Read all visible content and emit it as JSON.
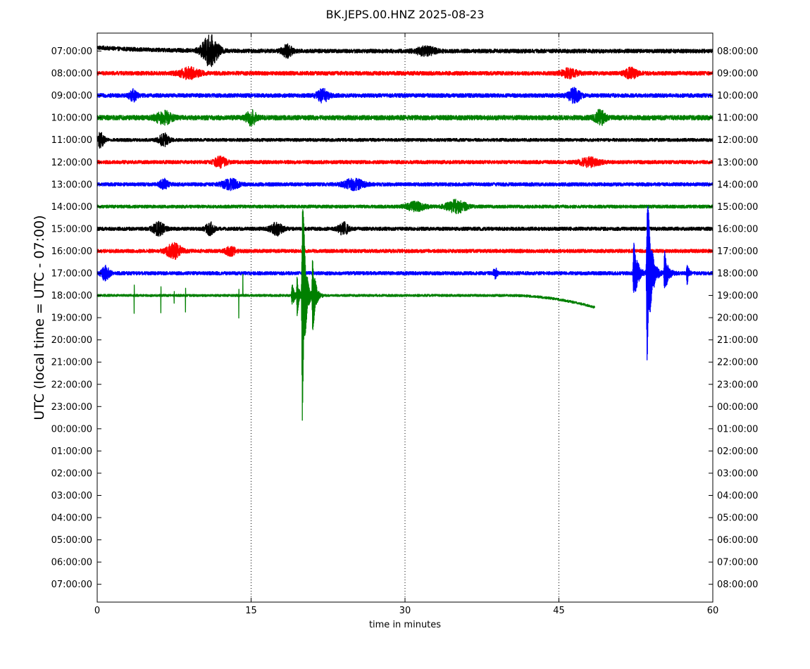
{
  "chart_data": {
    "type": "line",
    "title": "BK.JEPS.00.HNZ 2025-08-23",
    "xlabel": "time in minutes",
    "ylabel": "UTC (local time = UTC - 07:00)",
    "xlim": [
      0,
      60
    ],
    "xticks": [
      0,
      15,
      30,
      45,
      60
    ],
    "x_grid": "dotted vertical lines at 15, 30, 45",
    "left_tick_labels": [
      "07:00:00",
      "08:00:00",
      "09:00:00",
      "10:00:00",
      "11:00:00",
      "12:00:00",
      "13:00:00",
      "14:00:00",
      "15:00:00",
      "16:00:00",
      "17:00:00",
      "18:00:00",
      "19:00:00",
      "20:00:00",
      "21:00:00",
      "22:00:00",
      "23:00:00",
      "00:00:00",
      "01:00:00",
      "02:00:00",
      "03:00:00",
      "04:00:00",
      "05:00:00",
      "06:00:00",
      "07:00:00"
    ],
    "right_tick_labels": [
      "08:00:00",
      "09:00:00",
      "10:00:00",
      "11:00:00",
      "12:00:00",
      "13:00:00",
      "14:00:00",
      "15:00:00",
      "16:00:00",
      "17:00:00",
      "18:00:00",
      "19:00:00",
      "20:00:00",
      "21:00:00",
      "22:00:00",
      "23:00:00",
      "00:00:00",
      "01:00:00",
      "02:00:00",
      "03:00:00",
      "04:00:00",
      "05:00:00",
      "06:00:00",
      "07:00:00",
      "08:00:00"
    ],
    "trace_colors": [
      "#000000",
      "#ff0000",
      "#0000ff",
      "#008000"
    ],
    "traces": [
      {
        "row": 0,
        "color": "#000000",
        "start_min": 0,
        "end_min": 60,
        "noise": 0.1,
        "bursts": [
          [
            11.0,
            0.75,
            0.8
          ],
          [
            18.5,
            0.3,
            0.5
          ],
          [
            32.0,
            0.2,
            1.0
          ]
        ],
        "initial_offset": 0.18,
        "offset_decay_min": 5
      },
      {
        "row": 1,
        "color": "#ff0000",
        "start_min": 0,
        "end_min": 60,
        "noise": 0.1,
        "bursts": [
          [
            9.0,
            0.25,
            1.0
          ],
          [
            52.0,
            0.25,
            0.6
          ],
          [
            46.0,
            0.2,
            0.8
          ]
        ]
      },
      {
        "row": 2,
        "color": "#0000ff",
        "start_min": 0,
        "end_min": 60,
        "noise": 0.1,
        "bursts": [
          [
            22.0,
            0.3,
            0.6
          ],
          [
            46.5,
            0.35,
            0.6
          ],
          [
            3.5,
            0.25,
            0.4
          ]
        ]
      },
      {
        "row": 3,
        "color": "#008000",
        "start_min": 0,
        "end_min": 60,
        "noise": 0.12,
        "bursts": [
          [
            6.5,
            0.3,
            0.8
          ],
          [
            15.0,
            0.35,
            0.5
          ],
          [
            49.0,
            0.35,
            0.5
          ]
        ]
      },
      {
        "row": 4,
        "color": "#000000",
        "start_min": 0,
        "end_min": 60,
        "noise": 0.08,
        "bursts": [
          [
            0.3,
            0.35,
            0.4
          ],
          [
            6.5,
            0.3,
            0.5
          ]
        ]
      },
      {
        "row": 5,
        "color": "#ff0000",
        "start_min": 0,
        "end_min": 60,
        "noise": 0.09,
        "bursts": [
          [
            12.0,
            0.25,
            0.6
          ],
          [
            48.0,
            0.2,
            1.0
          ]
        ]
      },
      {
        "row": 6,
        "color": "#0000ff",
        "start_min": 0,
        "end_min": 60,
        "noise": 0.09,
        "bursts": [
          [
            6.5,
            0.25,
            0.4
          ],
          [
            13.0,
            0.25,
            0.8
          ],
          [
            25.0,
            0.25,
            1.0
          ]
        ]
      },
      {
        "row": 7,
        "color": "#008000",
        "start_min": 0,
        "end_min": 60,
        "noise": 0.08,
        "bursts": [
          [
            35.0,
            0.3,
            1.0
          ],
          [
            31.0,
            0.2,
            1.0
          ]
        ]
      },
      {
        "row": 8,
        "color": "#000000",
        "start_min": 0,
        "end_min": 60,
        "noise": 0.09,
        "bursts": [
          [
            6.0,
            0.3,
            0.6
          ],
          [
            11.0,
            0.3,
            0.4
          ],
          [
            17.5,
            0.3,
            0.6
          ],
          [
            24.0,
            0.3,
            0.5
          ]
        ]
      },
      {
        "row": 9,
        "color": "#ff0000",
        "start_min": 0,
        "end_min": 60,
        "noise": 0.09,
        "bursts": [
          [
            7.5,
            0.35,
            0.8
          ],
          [
            13.0,
            0.2,
            0.5
          ]
        ]
      },
      {
        "row": 10,
        "color": "#0000ff",
        "start_min": 0,
        "end_min": 60,
        "noise": 0.09,
        "bursts": [
          [
            0.8,
            0.35,
            0.4
          ],
          [
            38.8,
            0.25,
            0.2
          ]
        ],
        "events": [
          [
            52.3,
            1.6,
            0.35
          ],
          [
            53.6,
            4.6,
            0.35
          ],
          [
            55.3,
            1.1,
            0.3
          ],
          [
            57.5,
            0.6,
            0.15
          ]
        ]
      },
      {
        "row": 11,
        "color": "#008000",
        "start_min": 0,
        "end_min": 48.5,
        "noise": 0.06,
        "bursts": [],
        "spikes": [
          [
            3.6,
            1.1,
            -0.9
          ],
          [
            6.2,
            0.9,
            -0.9
          ],
          [
            7.5,
            0.4,
            -0.4
          ],
          [
            8.6,
            0.8,
            -0.8
          ],
          [
            13.8,
            0.7,
            -1.1
          ],
          [
            14.2,
            1.1,
            0
          ]
        ],
        "events": [
          [
            19.0,
            0.6,
            0.25
          ],
          [
            19.5,
            1.2,
            0.15
          ],
          [
            20.0,
            6.5,
            0.25
          ],
          [
            21.0,
            2.2,
            0.25
          ]
        ],
        "drift_start_min": 40,
        "drift_end_value": -0.6
      }
    ]
  }
}
